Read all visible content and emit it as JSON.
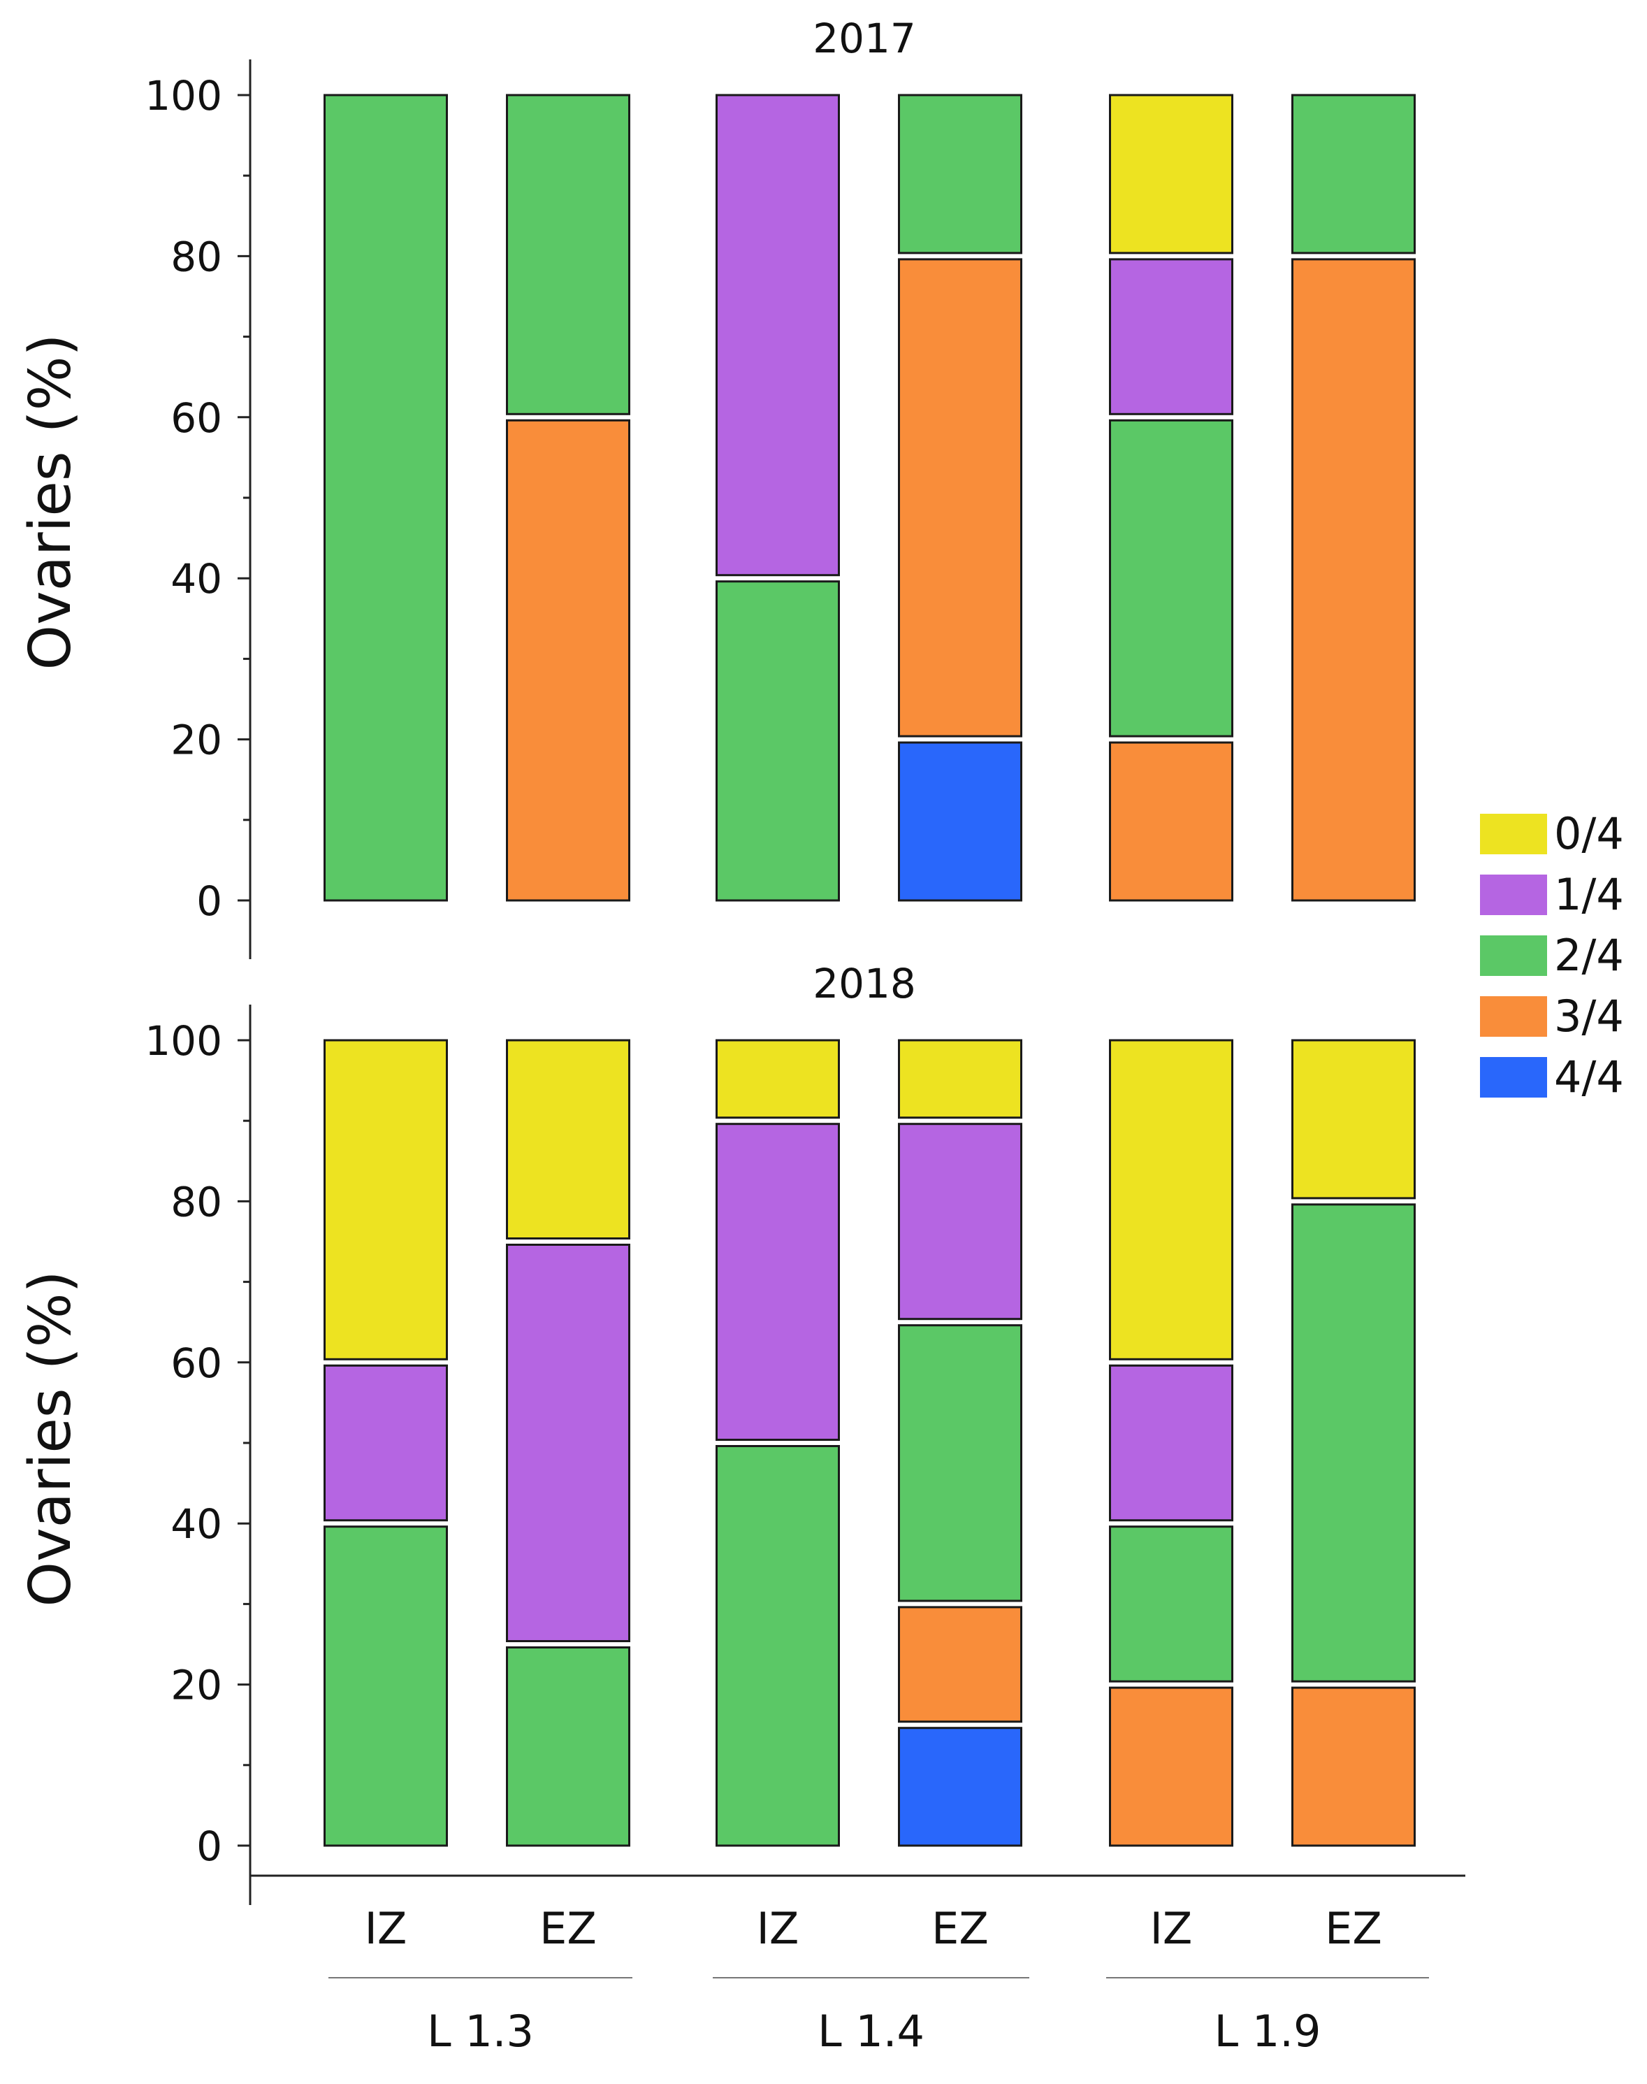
{
  "chart_data": {
    "type": "bar",
    "stacked": true,
    "ylabel": "Ovaries (%)",
    "ylim": [
      0,
      100
    ],
    "yticks": [
      0,
      20,
      40,
      60,
      80,
      100
    ],
    "x_labels": [
      "IZ",
      "EZ",
      "IZ",
      "EZ",
      "IZ",
      "EZ"
    ],
    "groups": [
      "L 1.3",
      "L 1.4",
      "L 1.9"
    ],
    "legend": {
      "position": "right",
      "entries": [
        {
          "label": "0/4",
          "color": "#EDE321"
        },
        {
          "label": "1/4",
          "color": "#B565E2"
        },
        {
          "label": "2/4",
          "color": "#5BC866"
        },
        {
          "label": "3/4",
          "color": "#F98D3A"
        },
        {
          "label": "4/4",
          "color": "#2967FB"
        }
      ]
    },
    "panels": [
      {
        "title": "2017",
        "bars": [
          {
            "zone": "IZ",
            "group": "L 1.3",
            "values": {
              "4/4": 0,
              "3/4": 0,
              "2/4": 100,
              "1/4": 0,
              "0/4": 0
            }
          },
          {
            "zone": "EZ",
            "group": "L 1.3",
            "values": {
              "4/4": 0,
              "3/4": 60,
              "2/4": 40,
              "1/4": 0,
              "0/4": 0
            }
          },
          {
            "zone": "IZ",
            "group": "L 1.4",
            "values": {
              "4/4": 0,
              "3/4": 0,
              "2/4": 40,
              "1/4": 60,
              "0/4": 0
            }
          },
          {
            "zone": "EZ",
            "group": "L 1.4",
            "values": {
              "4/4": 20,
              "3/4": 60,
              "2/4": 20,
              "1/4": 0,
              "0/4": 0
            }
          },
          {
            "zone": "IZ",
            "group": "L 1.9",
            "values": {
              "4/4": 0,
              "3/4": 20,
              "2/4": 40,
              "1/4": 20,
              "0/4": 20
            }
          },
          {
            "zone": "EZ",
            "group": "L 1.9",
            "values": {
              "4/4": 0,
              "3/4": 80,
              "2/4": 20,
              "1/4": 0,
              "0/4": 0
            }
          }
        ]
      },
      {
        "title": "2018",
        "bars": [
          {
            "zone": "IZ",
            "group": "L 1.3",
            "values": {
              "4/4": 0,
              "3/4": 0,
              "2/4": 40,
              "1/4": 20,
              "0/4": 40
            }
          },
          {
            "zone": "EZ",
            "group": "L 1.3",
            "values": {
              "4/4": 0,
              "3/4": 0,
              "2/4": 25,
              "1/4": 50,
              "0/4": 25
            }
          },
          {
            "zone": "IZ",
            "group": "L 1.4",
            "values": {
              "4/4": 0,
              "3/4": 0,
              "2/4": 50,
              "1/4": 40,
              "0/4": 10
            }
          },
          {
            "zone": "EZ",
            "group": "L 1.4",
            "values": {
              "4/4": 15,
              "3/4": 15,
              "2/4": 35,
              "1/4": 25,
              "0/4": 10
            }
          },
          {
            "zone": "IZ",
            "group": "L 1.9",
            "values": {
              "4/4": 0,
              "3/4": 20,
              "2/4": 20,
              "1/4": 20,
              "0/4": 40
            }
          },
          {
            "zone": "EZ",
            "group": "L 1.9",
            "values": {
              "4/4": 0,
              "3/4": 20,
              "2/4": 60,
              "1/4": 0,
              "0/4": 20
            }
          }
        ]
      }
    ]
  }
}
